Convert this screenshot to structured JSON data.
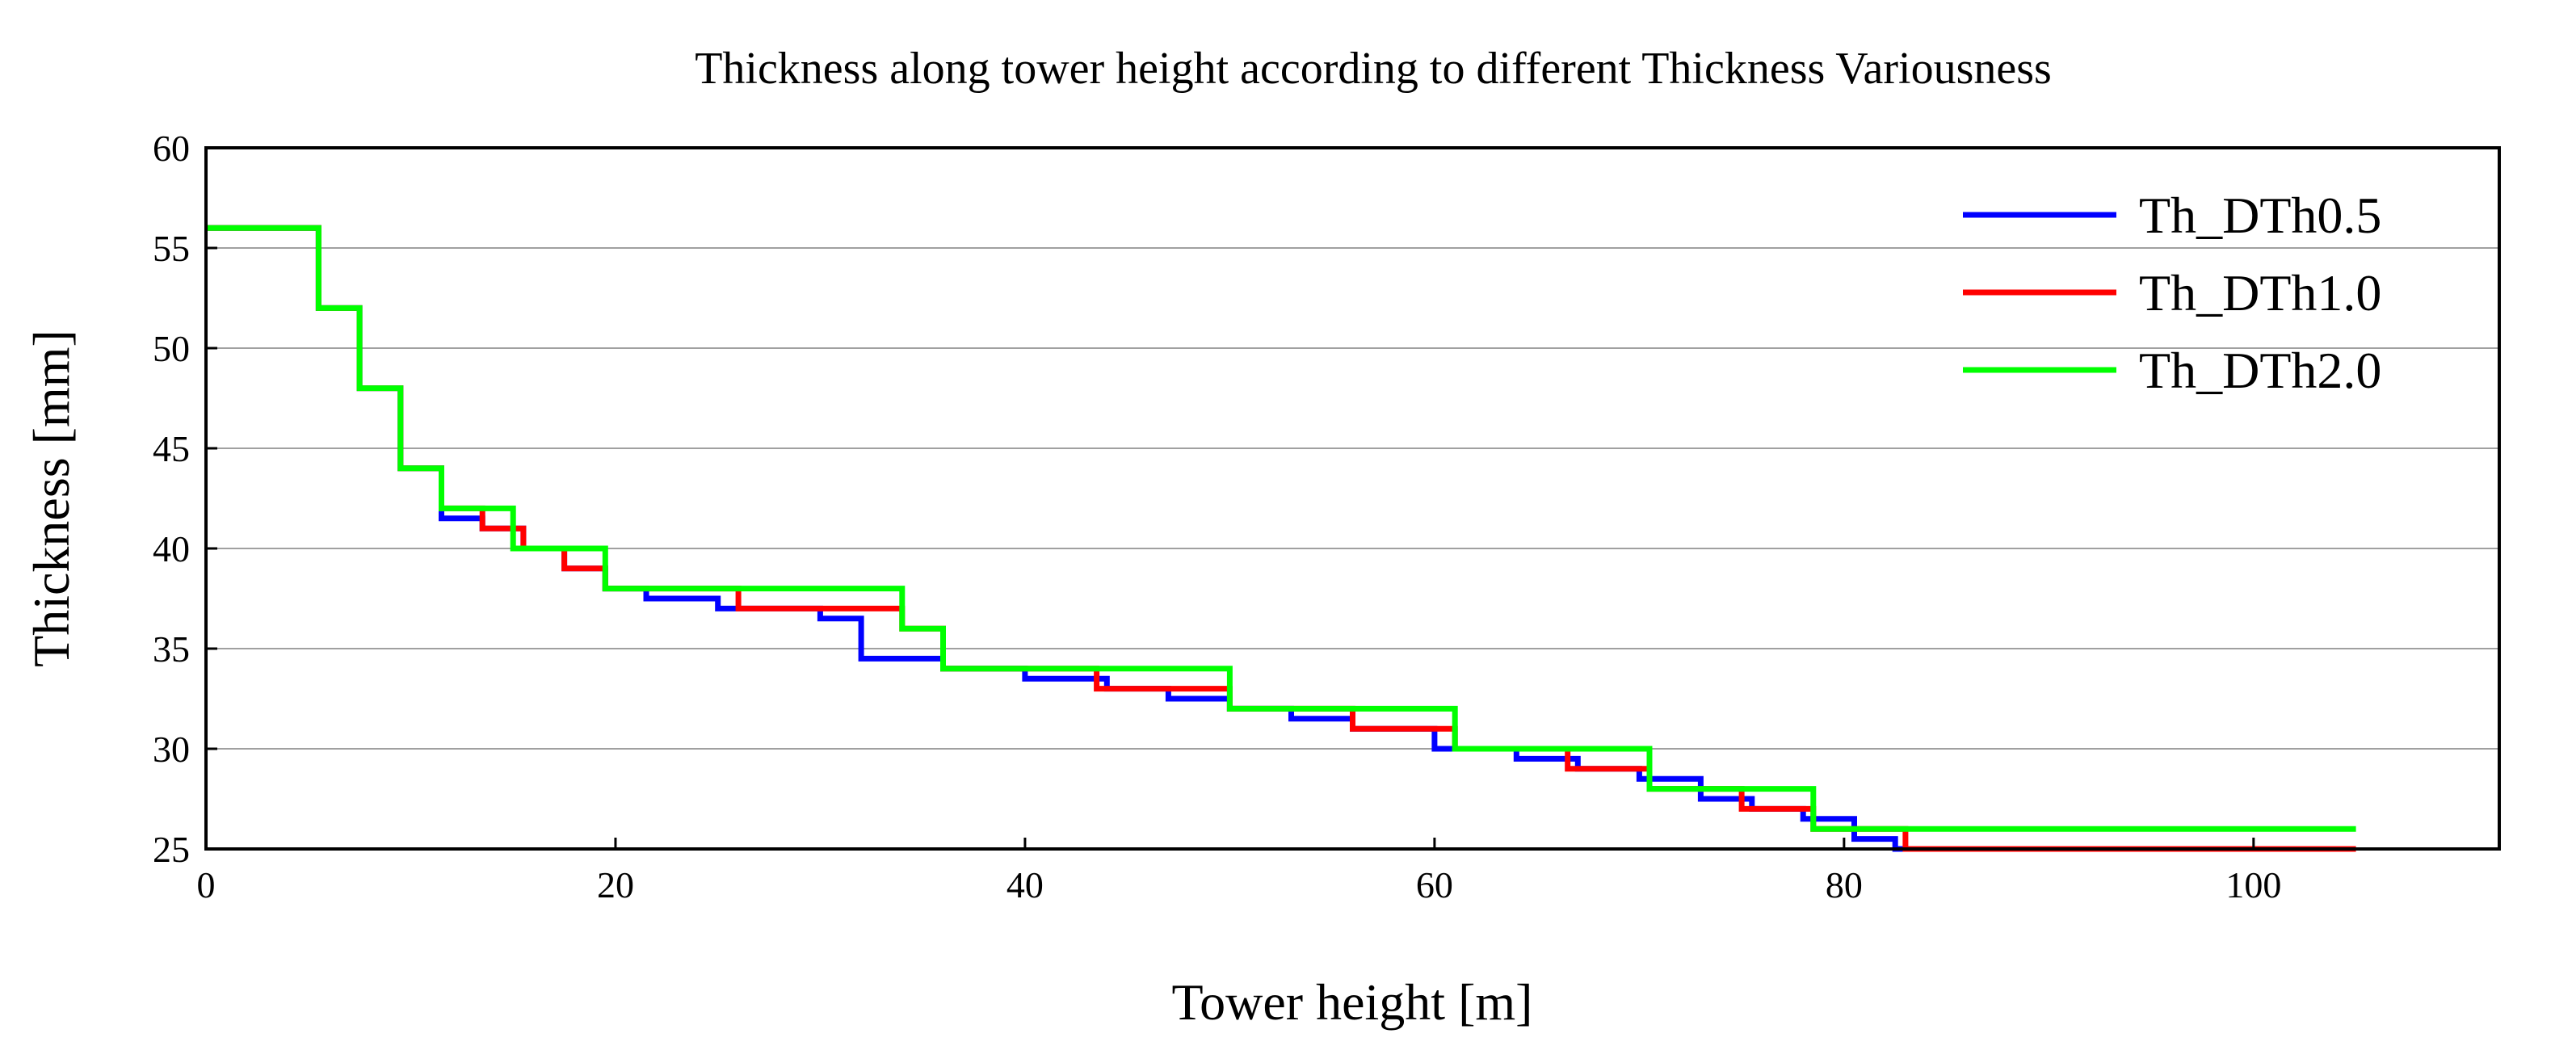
{
  "chart_data": {
    "type": "line",
    "step": true,
    "title": "Thickness along tower height according to different Thickness Variousness",
    "xlabel": "Tower height [m]",
    "ylabel": "Thickness [mm]",
    "xlim": [
      0,
      112
    ],
    "ylim": [
      25,
      60
    ],
    "xticks": [
      0,
      20,
      40,
      60,
      80,
      100
    ],
    "yticks": [
      25,
      30,
      35,
      40,
      45,
      50,
      55,
      60
    ],
    "xtick_labels": [
      "0",
      "20",
      "40",
      "60",
      "80",
      "100"
    ],
    "ytick_labels": [
      "25",
      "30",
      "35",
      "40",
      "45",
      "50",
      "55",
      "60"
    ],
    "grid": "horizontal",
    "legend_position": "top-right",
    "series": [
      {
        "name": "Th_DTh0.5",
        "color": "#0000ff",
        "x": [
          0,
          5.5,
          7.5,
          9.5,
          11.5,
          13.5,
          15.5,
          17.5,
          19.5,
          21.5,
          25.0,
          30.0,
          32.0,
          36.0,
          40.0,
          44.0,
          47.0,
          50.0,
          53.0,
          56.0,
          60.0,
          64.0,
          67.0,
          70.0,
          73.0,
          75.5,
          78.0,
          80.5,
          82.5,
          83.0
        ],
        "y": [
          56,
          52,
          48,
          44,
          41.5,
          41,
          40,
          39,
          38,
          37.5,
          37,
          36.5,
          34.5,
          34,
          33.5,
          33,
          32.5,
          32,
          31.5,
          31,
          30,
          29.5,
          29,
          28.5,
          27.5,
          27,
          26.5,
          25.5,
          25,
          25
        ]
      },
      {
        "name": "Th_DTh1.0",
        "color": "#ff0000",
        "x": [
          0,
          5.5,
          7.5,
          9.5,
          11.5,
          13.5,
          15.5,
          17.5,
          19.5,
          26.0,
          34.0,
          36.0,
          43.5,
          50.0,
          56.0,
          61.0,
          66.5,
          70.5,
          75.0,
          78.5,
          83.0,
          105.0
        ],
        "y": [
          56,
          52,
          48,
          44,
          42,
          41,
          40,
          39,
          38,
          37,
          36,
          34,
          33,
          32,
          31,
          30,
          29,
          28,
          27,
          26,
          25,
          25
        ]
      },
      {
        "name": "Th_DTh2.0",
        "color": "#00ff00",
        "x": [
          0,
          5.5,
          7.5,
          9.5,
          11.5,
          15.0,
          19.5,
          34.0,
          36.0,
          50.0,
          61.0,
          70.5,
          78.5,
          105.0
        ],
        "y": [
          56,
          52,
          48,
          44,
          42,
          40,
          38,
          36,
          34,
          32,
          30,
          28,
          26,
          26
        ]
      }
    ]
  }
}
